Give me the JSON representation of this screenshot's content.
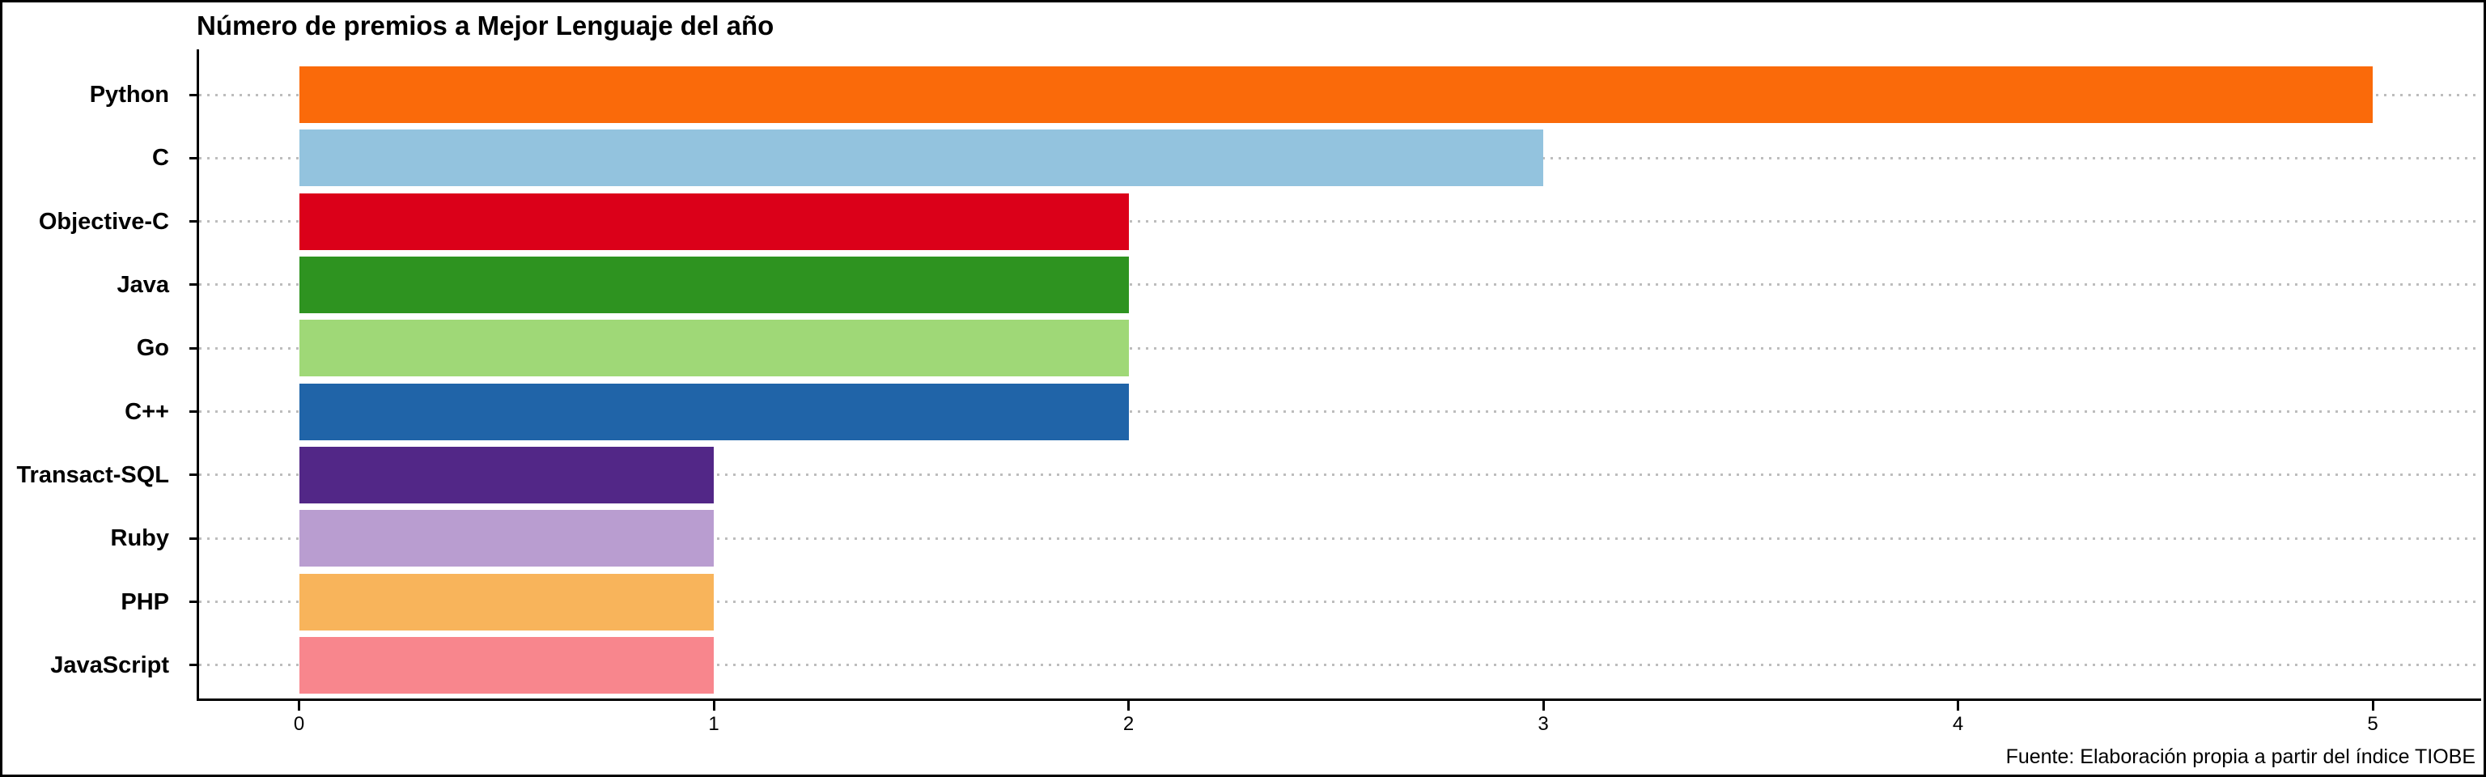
{
  "page": {
    "background_color": "#ffffff",
    "frame_color": "#000000"
  },
  "chart_data": {
    "type": "bar",
    "orientation": "horizontal",
    "title": "Número de premios a Mejor Lenguaje del año",
    "source_note": "Fuente: Elaboración propia a partir del índice TIOBE",
    "categories": [
      "Python",
      "C",
      "Objective-C",
      "Java",
      "Go",
      "C++",
      "Transact-SQL",
      "Ruby",
      "PHP",
      "JavaScript"
    ],
    "values": [
      5,
      3,
      2,
      2,
      2,
      2,
      1,
      1,
      1,
      1
    ],
    "bar_colors": [
      "#FA6A0A",
      "#93C3DE",
      "#DB0019",
      "#2E9320",
      "#9FD877",
      "#2064A8",
      "#522787",
      "#B99DD0",
      "#F8B45B",
      "#F8868D"
    ],
    "xlabel": "",
    "ylabel": "",
    "x_ticks": [
      0,
      1,
      2,
      3,
      4,
      5
    ],
    "x_tick_labels": [
      "0",
      "1",
      "2",
      "3",
      "4",
      "5"
    ],
    "xlim": [
      0,
      5.26
    ],
    "grid": "horizontal dotted",
    "grid_color": "#bdbdbd",
    "axis_color": "#000000",
    "text_color": "#000000",
    "legend": "none",
    "bar_value_labels": "none"
  }
}
